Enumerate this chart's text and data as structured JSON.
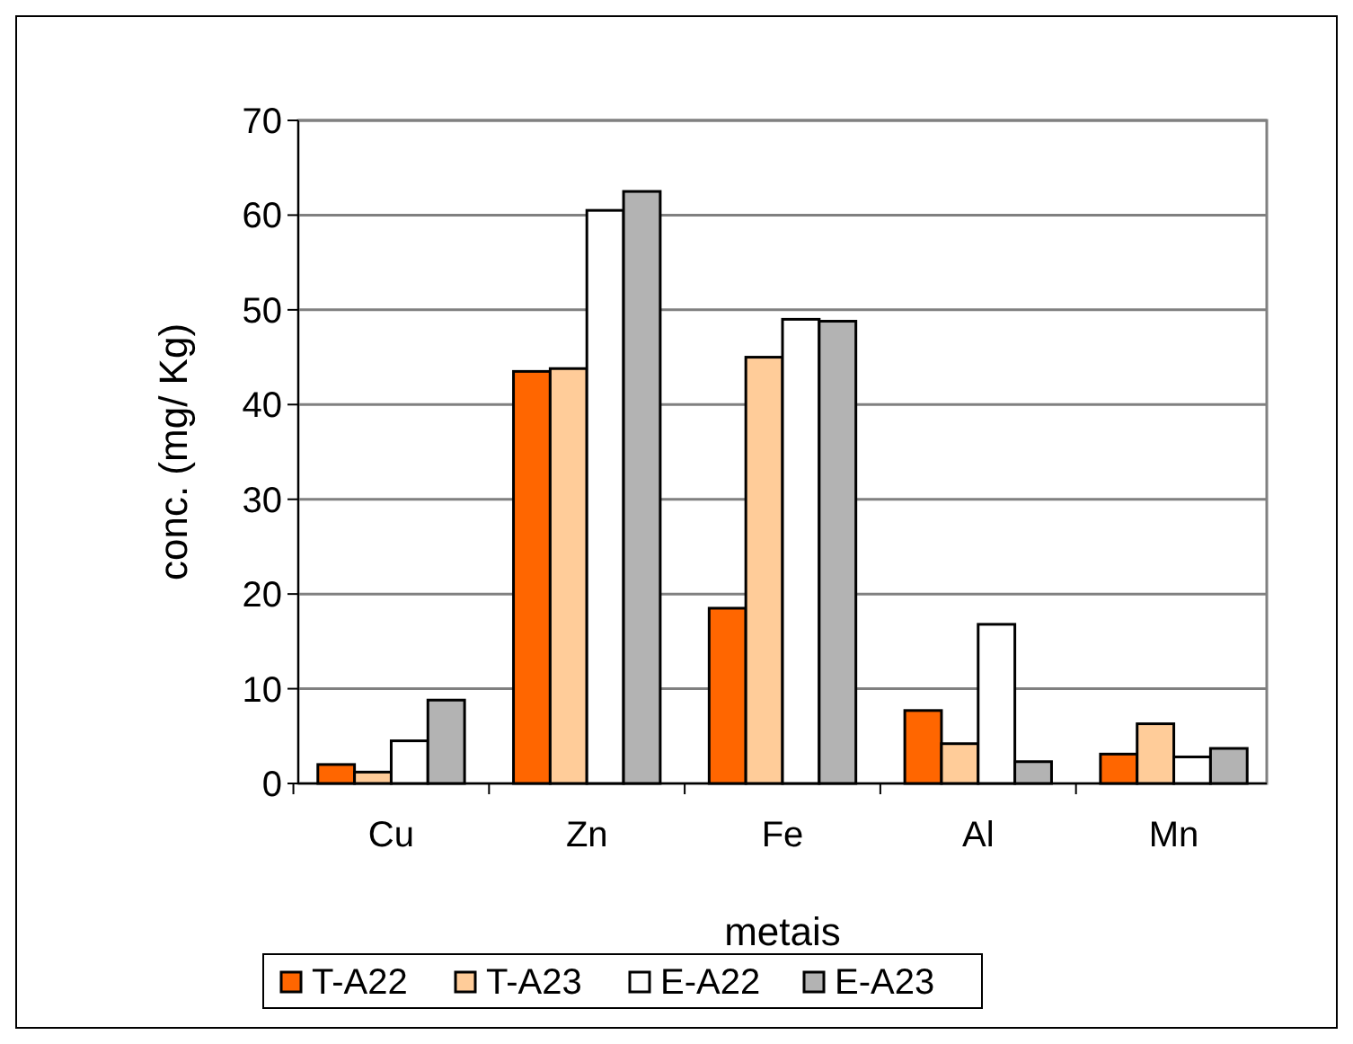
{
  "chart_data": {
    "type": "bar",
    "xlabel": "metais",
    "ylabel": "conc. (mg/ Kg)",
    "categories": [
      "Cu",
      "Zn",
      "Fe",
      "Al",
      "Mn"
    ],
    "series": [
      {
        "name": "T-A22",
        "color": "#ff6600",
        "values": [
          2,
          43.5,
          18.5,
          7.7,
          3.1
        ]
      },
      {
        "name": "T-A23",
        "color": "#ffcc99",
        "values": [
          1.2,
          43.8,
          45,
          4.2,
          6.3
        ]
      },
      {
        "name": "E-A22",
        "color": "#ffffff",
        "values": [
          4.5,
          60.5,
          49,
          16.8,
          2.8
        ]
      },
      {
        "name": "E-A23",
        "color": "#b3b3b3",
        "values": [
          8.8,
          62.5,
          48.8,
          2.3,
          3.7
        ]
      }
    ],
    "ylim": [
      0,
      70
    ],
    "yticks": [
      0,
      10,
      20,
      30,
      40,
      50,
      60,
      70
    ],
    "grid": "y",
    "legend": "bottom"
  }
}
